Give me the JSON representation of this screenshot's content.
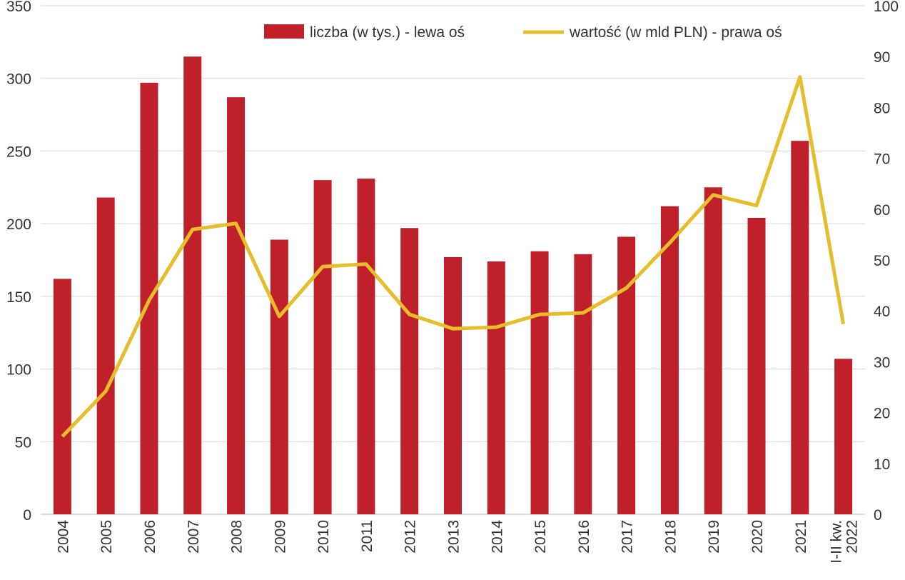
{
  "chart_data": {
    "type": "bar+line",
    "categories": [
      "2004",
      "2005",
      "2006",
      "2007",
      "2008",
      "2009",
      "2010",
      "2011",
      "2012",
      "2013",
      "2014",
      "2015",
      "2016",
      "2017",
      "2018",
      "2019",
      "2020",
      "2021",
      "I-II kw.\n2022"
    ],
    "series": [
      {
        "name": "liczba (w tys.) - lewa oś",
        "type": "bar",
        "axis": "left",
        "color": "#c0202a",
        "values": [
          162,
          218,
          297,
          315,
          287,
          189,
          230,
          231,
          197,
          177,
          174,
          181,
          179,
          191,
          212,
          225,
          204,
          257,
          107
        ]
      },
      {
        "name": "wartość (w mld PLN) - prawa oś",
        "type": "line",
        "axis": "right",
        "color": "#e6bd2a",
        "values": [
          15.3,
          24.2,
          42.1,
          56.0,
          57.2,
          38.9,
          48.7,
          49.2,
          39.3,
          36.5,
          36.8,
          39.3,
          39.6,
          44.5,
          53.4,
          62.8,
          60.7,
          86.0,
          37.4
        ]
      }
    ],
    "left_axis": {
      "ylim": [
        0,
        350
      ],
      "ticks": [
        "0",
        "50",
        "100",
        "150",
        "200",
        "250",
        "300",
        "350"
      ]
    },
    "right_axis": {
      "ylim": [
        0,
        100
      ],
      "ticks": [
        "0",
        "10",
        "20",
        "30",
        "40",
        "50",
        "60",
        "70",
        "80",
        "90",
        "100"
      ]
    },
    "grid": true,
    "legend_position": "top"
  }
}
